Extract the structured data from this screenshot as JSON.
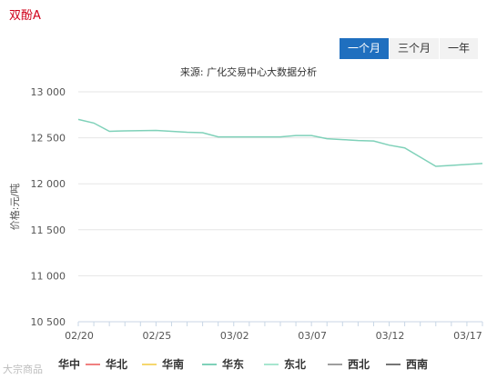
{
  "page": {
    "title": "双酚A"
  },
  "range_tabs": [
    {
      "label": "一个月",
      "active": true
    },
    {
      "label": "三个月",
      "active": false
    },
    {
      "label": "一年",
      "active": false
    }
  ],
  "watermark": "大宗商品",
  "chart_data": {
    "type": "line",
    "subtitle": "来源: 广化交易中心大数据分析",
    "ylabel": "价格:元/吨",
    "ylim": [
      10500,
      13000
    ],
    "yticks": [
      10500,
      11000,
      11500,
      12000,
      12500,
      13000
    ],
    "ytick_labels": [
      "10 500",
      "11 000",
      "11 500",
      "12 000",
      "12 500",
      "13 000"
    ],
    "x": [
      "02/20",
      "02/21",
      "02/22",
      "02/23",
      "02/24",
      "02/25",
      "02/26",
      "02/27",
      "02/28",
      "03/01",
      "03/02",
      "03/03",
      "03/04",
      "03/05",
      "03/06",
      "03/07",
      "03/08",
      "03/09",
      "03/10",
      "03/11",
      "03/12",
      "03/13",
      "03/14",
      "03/15",
      "03/16",
      "03/17",
      "03/18"
    ],
    "xtick_labels": [
      "02/20",
      "02/25",
      "03/02",
      "03/07",
      "03/12",
      "03/17"
    ],
    "legend": [
      {
        "name": "华中",
        "color": "#222222",
        "bold": true
      },
      {
        "name": "华北",
        "color": "#f08080"
      },
      {
        "name": "华南",
        "color": "#f5d76e"
      },
      {
        "name": "华东",
        "color": "#7fd1b9"
      },
      {
        "name": "东北",
        "color": "#a8e6cf"
      },
      {
        "name": "西北",
        "color": "#9e9e9e"
      },
      {
        "name": "西南",
        "color": "#757575"
      }
    ],
    "series": [
      {
        "name": "华东",
        "color": "#7fd1b9",
        "values": [
          12700,
          12660,
          12570,
          12575,
          12578,
          12580,
          12570,
          12560,
          12555,
          12510,
          12510,
          12510,
          12510,
          12510,
          12525,
          12525,
          12490,
          12480,
          12470,
          12465,
          12420,
          12390,
          12290,
          12190,
          12200,
          12210,
          12220
        ]
      }
    ],
    "grid": true,
    "legend_position": "bottom"
  }
}
